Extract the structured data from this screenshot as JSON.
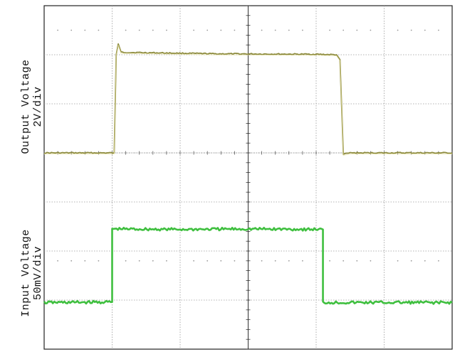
{
  "chart_data": {
    "type": "line",
    "title": "",
    "grid": true,
    "x_divisions": 6,
    "y_divisions": 7,
    "xlim": [
      0,
      6
    ],
    "ylim": [
      0,
      7
    ],
    "series": [
      {
        "name": "Output Voltage",
        "scale_label": "2V/div",
        "color": "#8c8a3c",
        "points": [
          [
            0.0,
            4.0
          ],
          [
            1.03,
            4.0
          ],
          [
            1.06,
            6.0
          ],
          [
            1.09,
            6.22
          ],
          [
            1.13,
            6.05
          ],
          [
            2.5,
            6.02
          ],
          [
            4.0,
            6.01
          ],
          [
            4.3,
            6.0
          ],
          [
            4.35,
            5.9
          ],
          [
            4.4,
            3.97
          ],
          [
            4.5,
            4.0
          ],
          [
            6.0,
            4.0
          ]
        ]
      },
      {
        "name": "Input Voltage",
        "scale_label": "50mV/div",
        "color": "#3fbf3f",
        "points": [
          [
            0.0,
            0.95
          ],
          [
            1.0,
            0.96
          ],
          [
            1.0,
            2.45
          ],
          [
            2.0,
            2.44
          ],
          [
            3.0,
            2.45
          ],
          [
            4.1,
            2.44
          ],
          [
            4.1,
            0.95
          ],
          [
            6.0,
            0.95
          ]
        ]
      }
    ]
  }
}
